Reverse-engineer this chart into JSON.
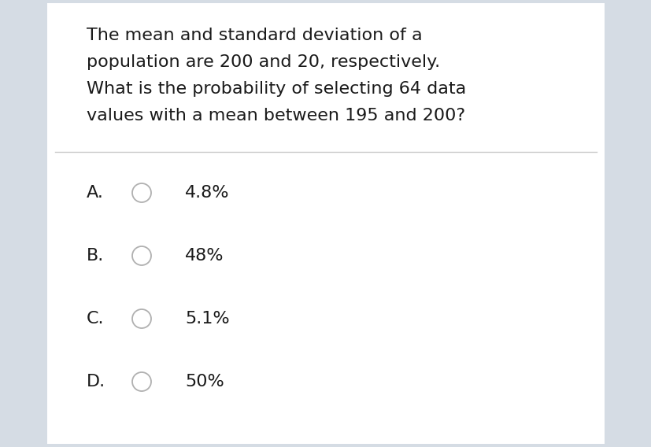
{
  "question_lines": [
    "The mean and standard deviation of a",
    "population are 200 and 20, respectively.",
    "What is the probability of selecting 64 data",
    "values with a mean between 195 and 200?"
  ],
  "options": [
    {
      "label": "A.",
      "answer": "4.8%"
    },
    {
      "label": "B.",
      "answer": "48%"
    },
    {
      "label": "C.",
      "answer": "5.1%"
    },
    {
      "label": "D.",
      "answer": "50%"
    }
  ],
  "bg_color": "#ffffff",
  "outer_bg_color": "#d5dce4",
  "text_color": "#1a1a1a",
  "divider_color": "#c8c8c8",
  "radio_edge_color": "#b0b0b0",
  "question_fontsize": 16,
  "option_fontsize": 16,
  "fig_width": 8.28,
  "fig_height": 5.68,
  "dpi": 100
}
